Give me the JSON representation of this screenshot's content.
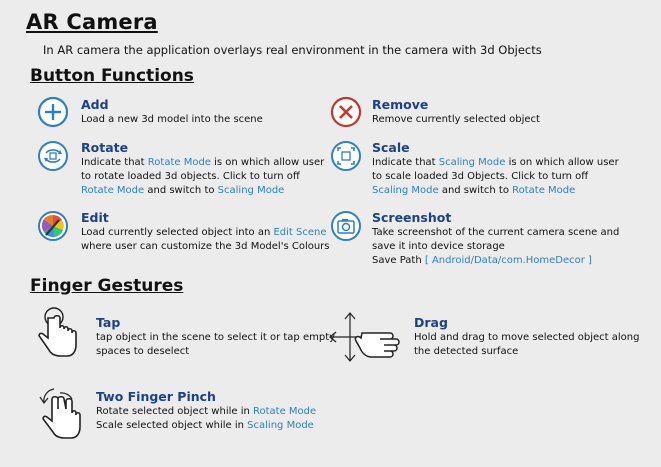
{
  "header": {
    "title": "AR Camera",
    "intro": "In AR camera the application overlays real environment in the camera with 3d Objects"
  },
  "button_functions": {
    "heading": "Button Functions",
    "add": {
      "name": "Add",
      "line1": "Load a new 3d model into the scene"
    },
    "remove": {
      "name": "Remove",
      "line1": "Remove currently selected object"
    },
    "rotate": {
      "name": "Rotate",
      "line1_a": "Indicate that ",
      "line1_hl": "Rotate Mode",
      "line1_b": " is on which allow user",
      "line2": "to rotate loaded 3d objects. Click to turn off",
      "line3_hl1": "Rotate Mode",
      "line3_mid": " and switch to ",
      "line3_hl2": "Scaling Mode"
    },
    "scale": {
      "name": "Scale",
      "line1_a": "Indicate that ",
      "line1_hl": "Scaling Mode",
      "line1_b": " is on which allow user",
      "line2": "to scale loaded 3d Objects. Click to turn off",
      "line3_hl1": "Scaling Mode",
      "line3_mid": " and switch to ",
      "line3_hl2": "Rotate Mode"
    },
    "edit": {
      "name": "Edit",
      "line1_a": "Load currently selected object into an ",
      "line1_hl": "Edit Scene",
      "line2": "where user can customize the 3d Model's Colours"
    },
    "screenshot": {
      "name": "Screenshot",
      "line1": "Take screenshot of the current camera scene and",
      "line2": "save it into device storage",
      "line3_a": "Save Path ",
      "line3_hl": "[ Android/Data/com.HomeDecor ]"
    }
  },
  "finger_gestures": {
    "heading": "Finger Gestures",
    "tap": {
      "name": "Tap",
      "line1": "tap object in the scene to select it or tap empty",
      "line2": "spaces to deselect"
    },
    "drag": {
      "name": "Drag",
      "line1": "Hold and drag to move selected object along",
      "line2": "the detected surface"
    },
    "pinch": {
      "name": "Two Finger Pinch",
      "line1_a": "Rotate selected object while in ",
      "line1_hl": "Rotate Mode",
      "line2_a": "Scale selected object while in ",
      "line2_hl": "Scaling Mode"
    }
  },
  "colors": {
    "heading_blue": "#1d3f8f",
    "highlight_blue": "#2f7fc4",
    "remove_red": "#c0392b",
    "background": "#ececec"
  },
  "icons": [
    "plus-circle-icon",
    "close-circle-icon",
    "rotate-icon",
    "scale-icon",
    "palette-icon",
    "camera-icon",
    "tap-hand-icon",
    "drag-hand-icon",
    "pinch-hand-icon"
  ]
}
